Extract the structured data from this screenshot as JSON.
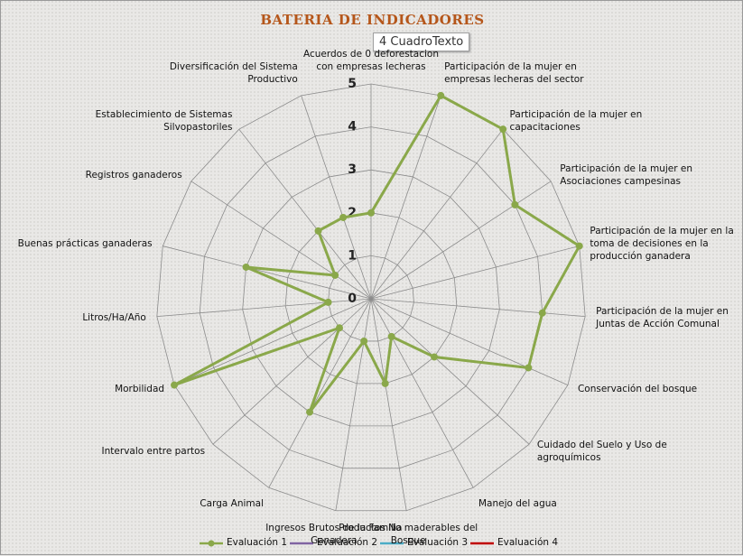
{
  "chart_data": {
    "type": "radar",
    "title": "BATERIA DE INDICADORES",
    "annotations": [
      "4 CuadroTexto"
    ],
    "categories": [
      "Acuerdos de 0 deforestacion con empresas lecheras",
      "Participación de la mujer en empresas lecheras del sector",
      "Participación de la mujer en capacitaciones",
      "Participación de la mujer en Asociaciones campesinas",
      "Participación de la mujer en la toma de decisiones en la producción ganadera",
      "Participación de la mujer en Juntas de Acción Comunal",
      "Conservación del bosque",
      "Cuidado del Suelo y Uso de agroquímicos",
      "Manejo del agua",
      "Productos No maderables del Bosque",
      "Ingresos Brutos de la Familia Ganadera",
      "Carga Animal",
      "Intervalo entre partos",
      "Morbilidad",
      "Litros/Ha/Año",
      "Buenas prácticas ganaderas",
      "Registros ganaderos",
      "Establecimiento de Sistemas Silvopastoriles",
      "Diversificación del Sistema Productivo"
    ],
    "series": [
      {
        "name": "Evaluación 1",
        "color": "#8aa84a",
        "values": [
          2,
          5,
          5,
          4,
          5,
          4,
          4,
          2,
          1,
          2,
          1,
          3,
          1,
          5,
          1,
          3,
          1,
          2,
          2
        ]
      },
      {
        "name": "Evaluación 2",
        "color": "#8064a2",
        "values": [
          null,
          null,
          null,
          null,
          null,
          null,
          null,
          null,
          null,
          null,
          null,
          null,
          null,
          null,
          null,
          null,
          null,
          null,
          null
        ]
      },
      {
        "name": "Evaluación 3",
        "color": "#4bacc6",
        "values": [
          null,
          null,
          null,
          null,
          null,
          null,
          null,
          null,
          null,
          null,
          null,
          null,
          null,
          null,
          null,
          null,
          null,
          null,
          null
        ]
      },
      {
        "name": "Evaluación 4",
        "color": "#c00000",
        "values": [
          null,
          null,
          null,
          null,
          null,
          null,
          null,
          null,
          null,
          null,
          null,
          null,
          null,
          null,
          null,
          null,
          null,
          null,
          null
        ]
      }
    ],
    "ylim": [
      0,
      5
    ],
    "yticks": [
      0,
      1,
      2,
      3,
      4,
      5
    ],
    "grid": true,
    "legend": "bottom"
  }
}
